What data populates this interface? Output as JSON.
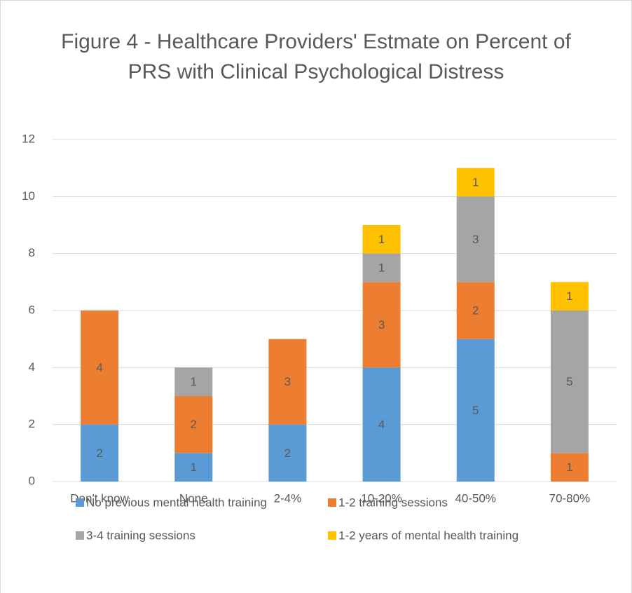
{
  "chart_data": {
    "type": "stacked_bar",
    "title": "Figure 4 - Healthcare Providers' Estmate on Percent of PRS with Clinical Psychological Distress",
    "categories": [
      "Don't know",
      "None",
      "2-4%",
      "10-20%",
      "40-50%",
      "70-80%"
    ],
    "series": [
      {
        "name": "No previous mental health training",
        "color": "#5b9bd5",
        "values": [
          2,
          1,
          2,
          4,
          5,
          null
        ]
      },
      {
        "name": "1-2 training sessions",
        "color": "#ed7d31",
        "values": [
          4,
          2,
          3,
          3,
          2,
          1
        ]
      },
      {
        "name": "3-4 training sessions",
        "color": "#a5a5a5",
        "values": [
          null,
          1,
          null,
          1,
          3,
          5
        ]
      },
      {
        "name": "1-2 years of mental health training",
        "color": "#ffc000",
        "values": [
          null,
          null,
          null,
          1,
          1,
          1
        ]
      }
    ],
    "ylim": [
      0,
      12
    ],
    "yticks": [
      0,
      2,
      4,
      6,
      8,
      10,
      12
    ],
    "grid": true,
    "legend": "bottom"
  }
}
